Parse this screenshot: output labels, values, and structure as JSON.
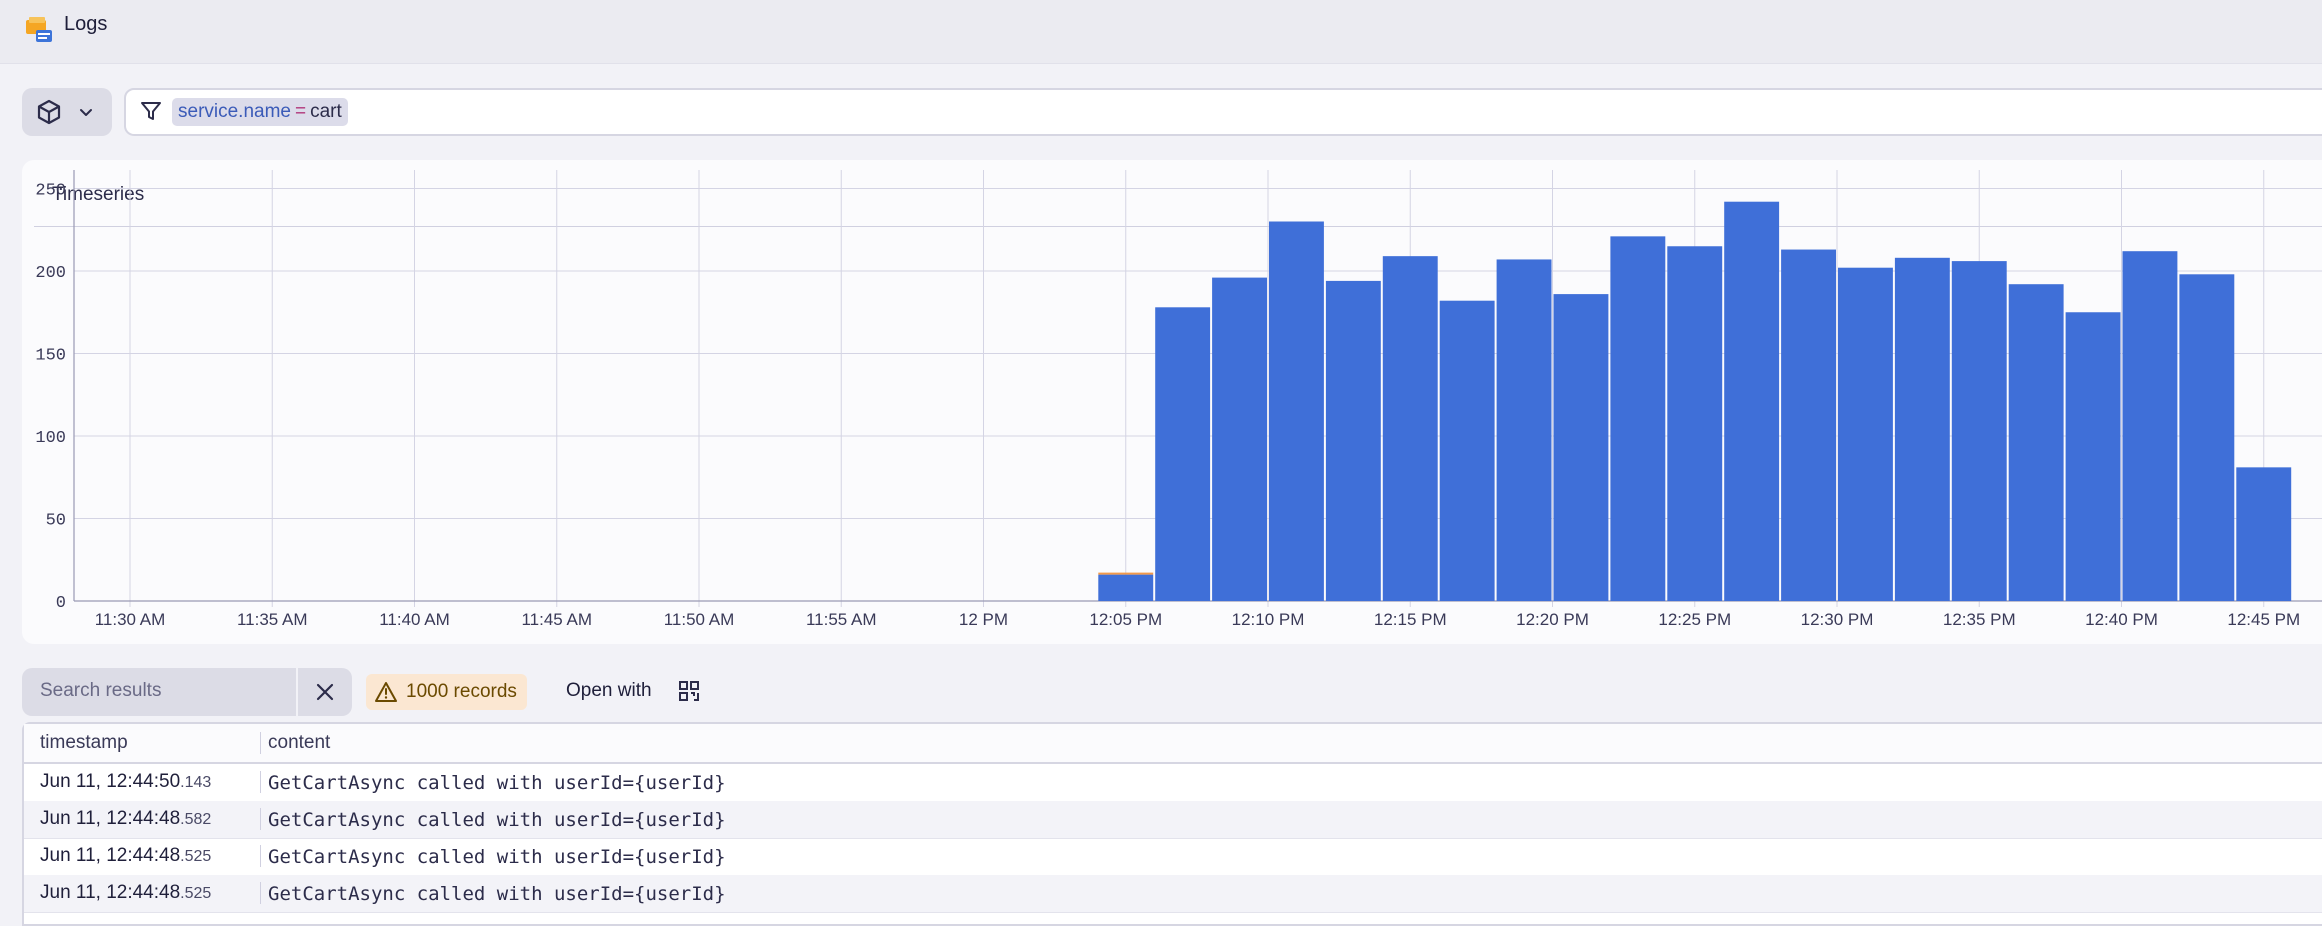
{
  "app": {
    "title": "Logs",
    "icon": "logs-app-icon"
  },
  "filter": {
    "key": "service.name",
    "operator": "=",
    "value": "cart"
  },
  "chart_card": {
    "title": "Timeseries"
  },
  "chart_data": {
    "type": "bar",
    "title": "",
    "xlabel": "",
    "ylabel": "",
    "ylim": [
      0,
      260
    ],
    "yticks": [
      0,
      50,
      100,
      150,
      200,
      250
    ],
    "xtick_labels": [
      "11:30 AM",
      "11:35 AM",
      "11:40 AM",
      "11:45 AM",
      "11:50 AM",
      "11:55 AM",
      "12 PM",
      "12:05 PM",
      "12:10 PM",
      "12:15 PM",
      "12:20 PM",
      "12:25 PM",
      "12:30 PM",
      "12:35 PM",
      "12:40 PM",
      "12:45 PM"
    ],
    "grid": true,
    "bar_color": "#3f6fd8",
    "accent_color": "#f2994a",
    "bars": [
      {
        "start": "12:04 PM",
        "value": 16
      },
      {
        "start": "12:06 PM",
        "value": 178
      },
      {
        "start": "12:08 PM",
        "value": 196
      },
      {
        "start": "12:10 PM",
        "value": 230
      },
      {
        "start": "12:12 PM",
        "value": 194
      },
      {
        "start": "12:14 PM",
        "value": 209
      },
      {
        "start": "12:16 PM",
        "value": 182
      },
      {
        "start": "12:18 PM",
        "value": 207
      },
      {
        "start": "12:20 PM",
        "value": 186
      },
      {
        "start": "12:22 PM",
        "value": 221
      },
      {
        "start": "12:24 PM",
        "value": 215
      },
      {
        "start": "12:26 PM",
        "value": 242
      },
      {
        "start": "12:28 PM",
        "value": 213
      },
      {
        "start": "12:30 PM",
        "value": 202
      },
      {
        "start": "12:32 PM",
        "value": 208
      },
      {
        "start": "12:34 PM",
        "value": 206
      },
      {
        "start": "12:36 PM",
        "value": 192
      },
      {
        "start": "12:38 PM",
        "value": 175
      },
      {
        "start": "12:40 PM",
        "value": 212
      },
      {
        "start": "12:42 PM",
        "value": 198
      },
      {
        "start": "12:44 PM",
        "value": 81
      }
    ]
  },
  "results": {
    "search_placeholder": "Search results",
    "records_label": "1000 records",
    "open_with_label": "Open with"
  },
  "table": {
    "columns": [
      "timestamp",
      "content"
    ],
    "rows": [
      {
        "ts_main": "Jun 11, 12:44:50",
        "ts_ms": ".143",
        "content": "GetCartAsync called with userId={userId}"
      },
      {
        "ts_main": "Jun 11, 12:44:48",
        "ts_ms": ".582",
        "content": "GetCartAsync called with userId={userId}"
      },
      {
        "ts_main": "Jun 11, 12:44:48",
        "ts_ms": ".525",
        "content": "GetCartAsync called with userId={userId}"
      },
      {
        "ts_main": "Jun 11, 12:44:48",
        "ts_ms": ".525",
        "content": "GetCartAsync called with userId={userId}"
      }
    ]
  }
}
